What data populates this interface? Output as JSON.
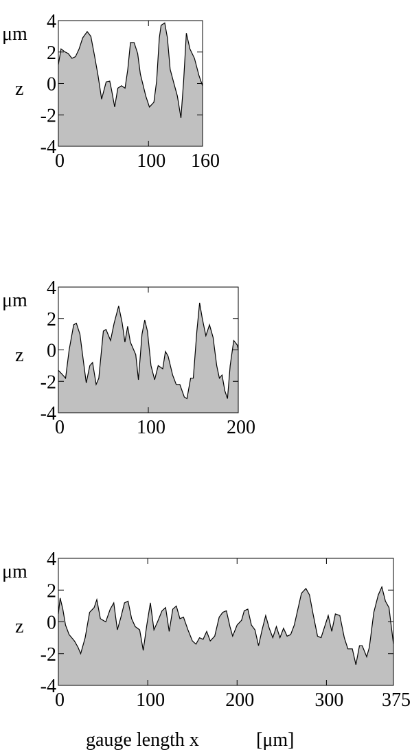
{
  "chart_data": [
    {
      "type": "area",
      "ylabel": "z",
      "yunit": "μm",
      "color": "#c0c0c0",
      "xlim": [
        0,
        160
      ],
      "ylim": [
        -4,
        4
      ],
      "xticks": [
        0,
        100,
        160
      ],
      "yticks": [
        -4,
        -2,
        0,
        2,
        4
      ],
      "x": [
        0,
        3,
        7.6,
        11,
        15,
        19,
        23,
        27,
        32,
        36,
        40,
        44,
        48,
        53,
        57,
        59,
        62.5,
        66,
        70,
        74,
        77,
        80,
        84,
        88,
        91,
        97,
        101,
        106,
        109,
        112,
        114,
        118,
        121,
        124,
        128,
        132,
        136,
        139,
        142,
        146,
        151,
        156,
        160
      ],
      "values": [
        1.2,
        2.2,
        2.0,
        1.9,
        1.6,
        1.7,
        2.2,
        2.9,
        3.3,
        3.0,
        1.8,
        0.5,
        -1.0,
        0.1,
        0.15,
        -0.4,
        -1.5,
        -0.3,
        -0.15,
        -0.3,
        0.9,
        2.6,
        2.6,
        1.9,
        0.6,
        -0.8,
        -1.5,
        -1.2,
        0.15,
        2.9,
        3.7,
        3.85,
        2.9,
        0.9,
        0.05,
        -0.8,
        -2.2,
        0.15,
        3.2,
        2.2,
        1.6,
        0.5,
        -0.15
      ]
    },
    {
      "type": "area",
      "ylabel": "z",
      "yunit": "μm",
      "color": "#c0c0c0",
      "xlim": [
        0,
        200
      ],
      "ylim": [
        -4,
        4
      ],
      "xticks": [
        0,
        100,
        200
      ],
      "yticks": [
        -4,
        -2,
        0,
        2,
        4
      ],
      "x": [
        0,
        5,
        8,
        12,
        17,
        20,
        24,
        28,
        31,
        35,
        38,
        42,
        45,
        50,
        53,
        58,
        62,
        67,
        71,
        74,
        77,
        80,
        86,
        89,
        93,
        96,
        99,
        103,
        107,
        111,
        116,
        119,
        122,
        127,
        131,
        135,
        140,
        143,
        147,
        150,
        154,
        157,
        160,
        164,
        168,
        172,
        176,
        179,
        182,
        185,
        188,
        191,
        195,
        199,
        200
      ],
      "values": [
        -1.3,
        -1.6,
        -1.8,
        0.0,
        1.6,
        1.7,
        1.0,
        -0.8,
        -2.1,
        -1.0,
        -0.8,
        -2.2,
        -1.8,
        1.2,
        1.3,
        0.6,
        1.7,
        2.8,
        1.7,
        0.5,
        1.5,
        0.5,
        -0.3,
        -1.9,
        1.0,
        1.9,
        1.2,
        -1.0,
        -1.9,
        -1.0,
        -1.2,
        -0.1,
        -0.4,
        -1.6,
        -2.2,
        -2.2,
        -3.0,
        -3.1,
        -1.8,
        -1.8,
        1.2,
        3.0,
        2.0,
        0.9,
        1.6,
        0.8,
        -1.0,
        -1.8,
        -1.6,
        -2.6,
        -3.1,
        -1.0,
        0.6,
        0.3,
        0
      ]
    },
    {
      "type": "area",
      "ylabel": "z",
      "yunit": "μm",
      "xlabel": "gauge length x",
      "xunit": "[μm]",
      "color": "#c0c0c0",
      "xlim": [
        0,
        375
      ],
      "ylim": [
        -4,
        4
      ],
      "xticks": [
        0,
        100,
        200,
        300,
        375
      ],
      "yticks": [
        -4,
        -2,
        0,
        2,
        4
      ],
      "x": [
        0,
        2,
        5,
        8,
        12,
        15,
        18,
        22,
        25,
        30,
        35,
        40,
        43,
        47,
        53,
        58,
        62,
        66,
        70,
        74,
        78,
        82,
        86,
        91,
        95,
        99,
        103,
        107,
        111,
        116,
        120,
        124,
        128,
        132,
        136,
        140,
        145,
        150,
        154,
        158,
        162,
        166,
        170,
        175,
        180,
        184,
        188,
        192,
        195,
        200,
        205,
        208,
        212,
        216,
        220,
        224,
        228,
        232,
        236,
        240,
        244,
        248,
        252,
        256,
        260,
        264,
        268,
        272,
        277,
        281,
        285,
        290,
        294,
        298,
        302,
        306,
        310,
        315,
        320,
        324,
        329,
        333,
        337,
        340,
        345,
        348,
        353,
        358,
        362,
        366,
        370,
        375
      ],
      "values": [
        0.5,
        1.5,
        0.8,
        -0.2,
        -0.8,
        -1.0,
        -1.2,
        -1.6,
        -2.0,
        -1.0,
        0.6,
        0.9,
        1.4,
        0.2,
        0.0,
        0.8,
        1.2,
        -0.5,
        0.3,
        1.2,
        1.3,
        0.2,
        -0.3,
        -0.5,
        -1.8,
        -0.2,
        1.2,
        -0.5,
        0.0,
        0.7,
        0.9,
        -0.6,
        0.8,
        1.0,
        0.2,
        0.3,
        -0.5,
        -1.2,
        -1.4,
        -1.0,
        -1.1,
        -0.6,
        -1.2,
        -0.9,
        0.3,
        0.6,
        0.7,
        -0.3,
        -0.9,
        -0.2,
        0.1,
        0.7,
        0.8,
        -0.2,
        -0.5,
        -1.5,
        -0.5,
        0.4,
        -0.4,
        -1.0,
        -0.3,
        -1.0,
        -0.4,
        -0.9,
        -0.8,
        -0.2,
        0.8,
        1.8,
        2.1,
        1.7,
        0.5,
        -0.9,
        -1.0,
        -0.3,
        0.4,
        -0.6,
        0.5,
        0.4,
        -1.0,
        -1.7,
        -1.7,
        -2.7,
        -1.5,
        -1.5,
        -2.2,
        -1.6,
        0.6,
        1.7,
        2.2,
        1.3,
        0.9,
        -1.4
      ]
    }
  ]
}
